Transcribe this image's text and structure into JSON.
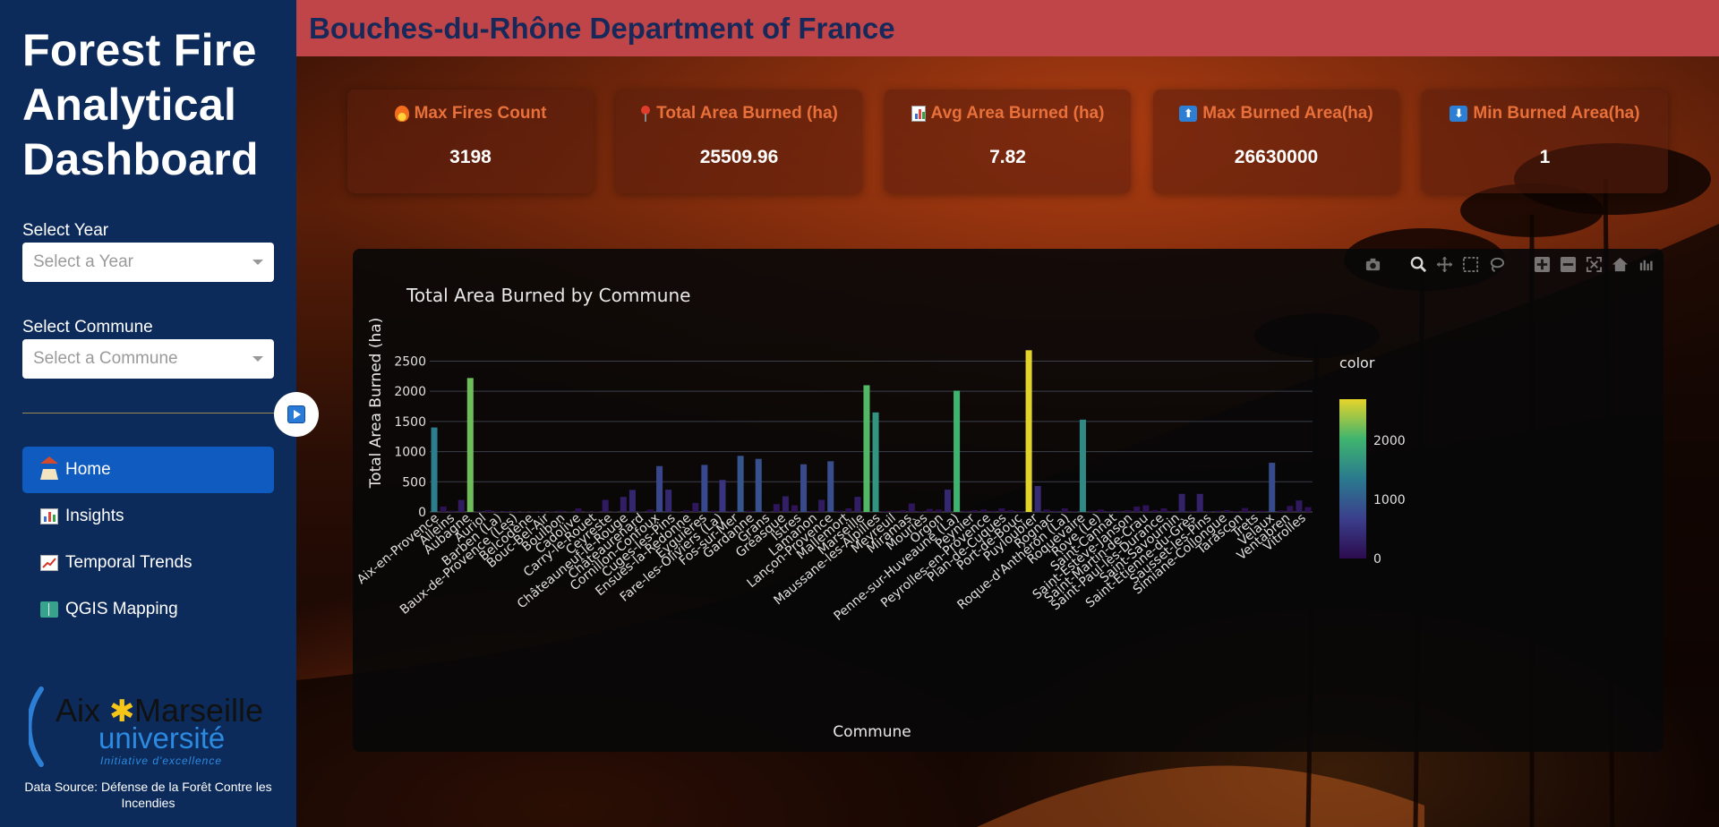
{
  "sidebar": {
    "title_lines": [
      "Forest Fire",
      "Analytical",
      "Dashboard"
    ],
    "year_label": "Select Year",
    "year_placeholder": "Select a Year",
    "commune_label": "Select Commune",
    "commune_placeholder": "Select a Commune",
    "nav": [
      {
        "label": "Home",
        "icon": "home-icon",
        "active": true
      },
      {
        "label": "Insights",
        "icon": "bar-chart-icon",
        "active": false
      },
      {
        "label": "Temporal Trends",
        "icon": "trend-chart-icon",
        "active": false
      },
      {
        "label": "QGIS Mapping",
        "icon": "book-icon",
        "active": false
      }
    ],
    "logo": {
      "line1_left": "Aix",
      "line1_right": "Marseille",
      "line2": "université",
      "tagline": "Initiative d'excellence"
    },
    "source": "Data Source: Défense de la Forêt Contre les Incendies"
  },
  "header": {
    "title": "Bouches-du-Rhône Department of France"
  },
  "stats": [
    {
      "label": "Max Fires Count",
      "value": "3198",
      "icon": "fire-icon"
    },
    {
      "label": "Total Area Burned (ha)",
      "value": "25509.96",
      "icon": "pin-icon"
    },
    {
      "label": "Avg Area Burned (ha)",
      "value": "7.82",
      "icon": "bar-chart-icon"
    },
    {
      "label": "Max Burned Area(ha)",
      "value": "26630000",
      "icon": "up-arrow-icon"
    },
    {
      "label": "Min Burned Area(ha)",
      "value": "1",
      "icon": "down-arrow-icon"
    }
  ],
  "colors": {
    "sidebar": "#0c2b5b",
    "header": "#bf4548",
    "title_text": "#16295a",
    "stat_label": "#e8703a",
    "nav_active": "#0f5bbf"
  },
  "chart_data": {
    "type": "bar",
    "title": "Total Area Burned by Commune",
    "xlabel": "Commune",
    "ylabel": "Total Area Burned (ha)",
    "ylim": [
      0,
      2700
    ],
    "yticks": [
      0,
      500,
      1000,
      1500,
      2000,
      2500
    ],
    "colorbar": {
      "title": "color",
      "ticks": [
        0,
        1000,
        2000
      ],
      "colorscale": "viridis-plasma"
    },
    "grid": true,
    "categories": [
      "Aix-en-Provence",
      "Allauch",
      "Alleins",
      "Aubagne",
      "Auriol",
      "Barbentane",
      "Barben (La)",
      "Baux-de-Provence (Les)",
      "Beaurecueil",
      "Belcodène",
      "Berre-l'Étang",
      "Bouc-Bel-Air",
      "Bouilladisses (La)",
      "Boulbon",
      "Cabriès",
      "Cadolive",
      "Carnoux",
      "Carry-le-Rouet",
      "Cassis",
      "Ceyreste",
      "Charleval",
      "Châteauneuf-le-Rouge",
      "Châteauneuf-les-Martigues",
      "Châteaurenard",
      "Ciotat (La)",
      "Cornillon-Confoux",
      "Cuges-les-Pins",
      "Destrousse (La)",
      "Ensuès-la-Redonne",
      "Eygalières",
      "Eyguières",
      "Fare-les-Oliviers (La)",
      "Fos-sur-Mer",
      "Fuveau",
      "Gardanne",
      "Gémenos",
      "Grans",
      "Gréasque",
      "Istres",
      "Jouques",
      "Lamanon",
      "Lambesc",
      "Lançon-Provence",
      "Meyrargues",
      "Mallemort",
      "Marseille",
      "Martigues",
      "Maussane-les-Alpilles",
      "Meyreuil",
      "Mimet",
      "Miramas",
      "Mouriès",
      "Noves",
      "Orgon",
      "Paradou",
      "Pélissanne",
      "Penne-sur-Huveaune (La)",
      "Peynier",
      "Peypin",
      "Peyrolles-en-Provence",
      "Puyloubier",
      "Plan-de-Cuques",
      "Port-de-Bouc",
      "Port-Saint-Louis",
      "Puy-Sainte-Réparade",
      "Pélissanne2",
      "Rognac",
      "Roque-d'Anthéron (La)",
      "Rognes",
      "Roquefort",
      "Roquevaire",
      "Rousset",
      "Rove (Le)",
      "Saint-Cannat",
      "Saint-Chamas",
      "Saint-Estève-Janson",
      "Saint-Marc-Jaumegarde",
      "Saint-Martin-de-Crau",
      "Saint-Mitre",
      "Saint-Paul-lès-Durance",
      "Saint-Rémy",
      "Saint-Savournin",
      "Saint-Victoret",
      "Saint-Étienne-du-Grès",
      "Salon",
      "Sausset-les-Pins",
      "Sénas",
      "Septèmes",
      "Simiane-Collongue",
      "Tarascon",
      "Tholonet (Le)",
      "Trets",
      "Vauvenargues",
      "Velaux",
      "Venelles",
      "Ventabren",
      "Vernègues",
      "Vitrolles"
    ],
    "x_tick_labels": [
      "Aix-en-Provence",
      "Alleins",
      "Aubagne",
      "Auriol",
      "Barben (La)",
      "Baux-de-Provence (Les)",
      "Belcodène",
      "Bouc-Bel-Air",
      "Boulbon",
      "Cadolive",
      "Carry-le-Rouet",
      "Ceyreste",
      "Châteauneuf-le-Rouge",
      "Châteaurenard",
      "Cornillon-Confoux",
      "Cuges-les-Pins",
      "Ensuès-la-Redonne",
      "Eyguières",
      "Fare-les-Oliviers (La)",
      "Fos-sur-Mer",
      "Gardanne",
      "Grans",
      "Gréasque",
      "Istres",
      "Lamanon",
      "Lançon-Provence",
      "Mallemort",
      "Marseille",
      "Maussane-les-Alpilles",
      "Meyreuil",
      "Miramas",
      "Mouriès",
      "Orgon",
      "Penne-sur-Huveaune (La)",
      "Peynier",
      "Peyrolles-en-Provence",
      "Plan-de-Cuques",
      "Port-de-Bouc",
      "Puyloubier",
      "Rognac",
      "Roque-d'Anthéron (La)",
      "Roquevaire",
      "Rove (Le)",
      "Saint-Cannat",
      "Saint-Estève-Janson",
      "Saint-Martin-de-Crau",
      "Saint-Paul-lès-Durance",
      "Saint-Savournin",
      "Saint-Étienne-du-Grès",
      "Sausset-les-Pins",
      "Simiane-Collongue",
      "Tarascon",
      "Trets",
      "Velaux",
      "Ventabren",
      "Vitrolles"
    ],
    "values": [
      1400,
      90,
      20,
      200,
      2220,
      15,
      30,
      10,
      15,
      10,
      5,
      5,
      10,
      5,
      20,
      5,
      60,
      5,
      10,
      200,
      5,
      250,
      365,
      5,
      40,
      760,
      370,
      5,
      30,
      150,
      780,
      20,
      530,
      20,
      930,
      20,
      880,
      10,
      130,
      260,
      110,
      790,
      20,
      200,
      840,
      20,
      60,
      250,
      2100,
      1650,
      15,
      20,
      30,
      140,
      15,
      50,
      40,
      370,
      2010,
      20,
      30,
      40,
      20,
      60,
      30,
      15,
      2680,
      430,
      40,
      20,
      60,
      15,
      1530,
      20,
      40,
      15,
      20,
      30,
      90,
      110,
      30,
      60,
      15,
      300,
      20,
      300,
      15,
      20,
      30,
      15,
      65,
      20,
      20,
      815,
      25,
      100,
      190,
      80
    ]
  }
}
